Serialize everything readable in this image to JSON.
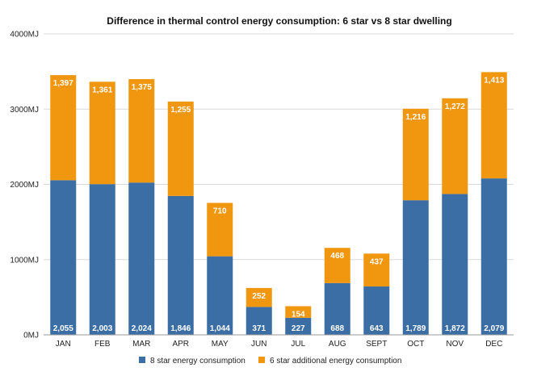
{
  "chart_data": {
    "type": "bar",
    "stacked": true,
    "title": "Difference in thermal control energy consumption: 6 star vs 8 star dwelling",
    "xlabel": "",
    "ylabel": "",
    "ylim": [
      0,
      4000
    ],
    "yticks": [
      0,
      1000,
      2000,
      3000,
      4000
    ],
    "ytick_labels": [
      "0MJ",
      "1000MJ",
      "2000MJ",
      "3000MJ",
      "4000MJ"
    ],
    "grid": true,
    "legend_position": "bottom",
    "categories": [
      "JAN",
      "FEB",
      "MAR",
      "APR",
      "MAY",
      "JUN",
      "JUL",
      "AUG",
      "SEPT",
      "OCT",
      "NOV",
      "DEC"
    ],
    "series": [
      {
        "name": "8 star energy consumption",
        "color": "#3a6ea5",
        "values": [
          2055,
          2003,
          2024,
          1846,
          1044,
          371,
          227,
          688,
          643,
          1789,
          1872,
          2079
        ],
        "labels": [
          "2,055",
          "2,003",
          "2,024",
          "1,846",
          "1,044",
          "371",
          "227",
          "688",
          "643",
          "1,789",
          "1,872",
          "2,079"
        ]
      },
      {
        "name": "6 star additional energy consumption",
        "color": "#f0960f",
        "values": [
          1397,
          1361,
          1375,
          1255,
          710,
          252,
          154,
          468,
          437,
          1216,
          1272,
          1413
        ],
        "labels": [
          "1,397",
          "1,361",
          "1,375",
          "1,255",
          "710",
          "252",
          "154",
          "468",
          "437",
          "1,216",
          "1,272",
          "1,413"
        ]
      }
    ]
  }
}
